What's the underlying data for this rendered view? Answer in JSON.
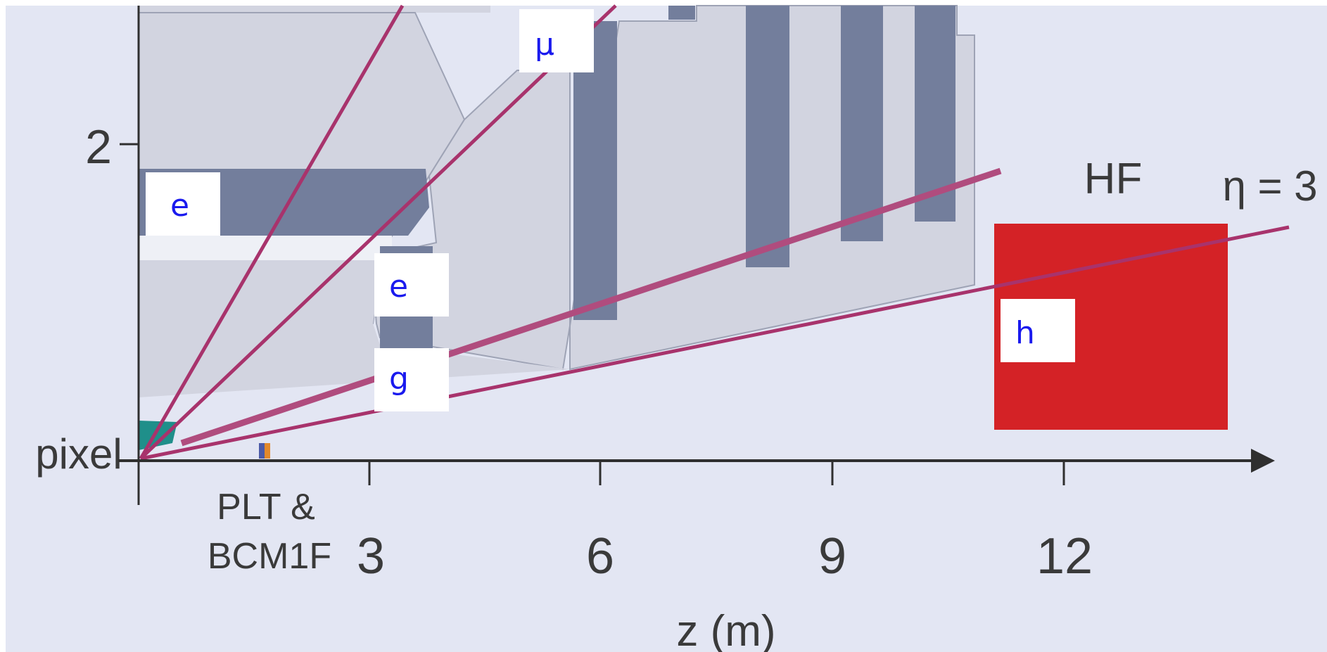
{
  "colors": {
    "background": "#e3e6f3",
    "detector_light": "#d2d4e0",
    "detector_dark": "#737e9c",
    "hf_red": "#d42226",
    "pixel_teal": "#1f8f8a",
    "track": "#a8336c",
    "axis": "#2f2f2f",
    "tag_text": "#1a1aee"
  },
  "y_axis": {
    "tick_label": "2",
    "origin_label": "pixel"
  },
  "x_axis": {
    "title": "z (m)",
    "ticks": [
      "3",
      "6",
      "9",
      "12"
    ],
    "plt_label_line1": "PLT &",
    "plt_label_line2": "BCM1F"
  },
  "annotations": {
    "hf": "HF",
    "eta": "η = 3"
  },
  "particle_tags": {
    "e_upper": "e",
    "mu": "μ",
    "e_lower": "e",
    "g": "g",
    "h": "h"
  }
}
